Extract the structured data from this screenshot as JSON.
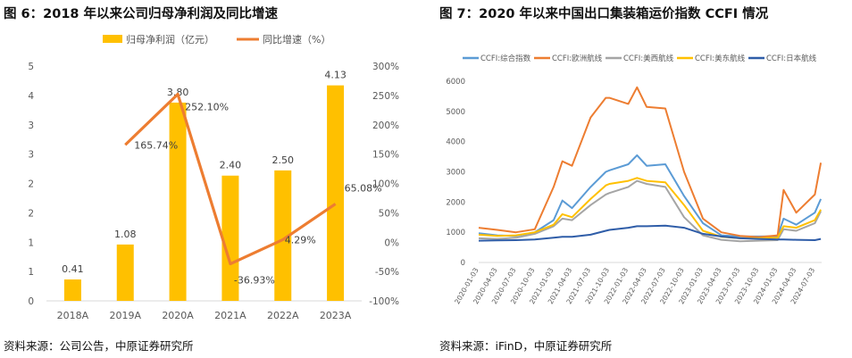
{
  "left": {
    "title": "图 6：2018 年以来公司归母净利润及同比增速",
    "source": "资料来源：公司公告，中原证券研究所",
    "accent": "#8b1a1a"
  },
  "right": {
    "title": "图 7：2020 年以来中国出口集装箱运价指数 CCFI 情况",
    "source": "资料来源：iFinD，中原证券研究所",
    "accent": "#8b1a1a"
  },
  "chart_data": [
    {
      "type": "bar",
      "categories": [
        "2018A",
        "2019A",
        "2020A",
        "2021A",
        "2022A",
        "2023A"
      ],
      "series": [
        {
          "name": "归母净利润（亿元）",
          "type": "bar",
          "axis": "left",
          "color": "#FFC000",
          "values": [
            0.41,
            1.08,
            3.8,
            2.4,
            2.5,
            4.13
          ],
          "labels": [
            "0.41",
            "1.08",
            "3.80",
            "2.40",
            "2.50",
            "4.13"
          ]
        },
        {
          "name": "同比增速（%）",
          "type": "line",
          "axis": "right",
          "color": "#ED7D31",
          "values": [
            null,
            165.74,
            252.1,
            -36.93,
            4.29,
            65.08
          ],
          "labels": [
            null,
            "165.74%",
            "252.10%",
            "-36.93%",
            "4.29%",
            "65.08%"
          ]
        }
      ],
      "y_left": {
        "ticks": [
          "5",
          "4",
          "3",
          "3",
          "2",
          "2",
          "1",
          "1",
          "0"
        ]
      },
      "y_right": {
        "ticks": [
          "300%",
          "250%",
          "200%",
          "150%",
          "100%",
          "50%",
          "0%",
          "-50%",
          "-100%"
        ],
        "ylim": [
          -100,
          300
        ]
      },
      "legend": "top",
      "grid": false
    },
    {
      "type": "line",
      "x_ticks": [
        "2020-01-03",
        "2020-04-03",
        "2020-07-03",
        "2020-10-03",
        "2021-01-03",
        "2021-04-03",
        "2021-07-03",
        "2021-10-03",
        "2022-01-03",
        "2022-04-03",
        "2022-07-03",
        "2022-10-03",
        "2023-01-03",
        "2023-04-03",
        "2023-07-03",
        "2023-10-03",
        "2024-01-03",
        "2024-04-03",
        "2024-07-03"
      ],
      "y_ticks": [
        "0",
        "1000",
        "2000",
        "3000",
        "4000",
        "5000",
        "6000"
      ],
      "ylim": [
        0,
        6000
      ],
      "legend": "top",
      "grid": false,
      "series": [
        {
          "name": "CCFI:综合指数",
          "color": "#5B9BD5",
          "x": [
            "2020-01-03",
            "2020-04-03",
            "2020-07-03",
            "2020-10-03",
            "2021-01-03",
            "2021-02-15",
            "2021-04-03",
            "2021-07-03",
            "2021-09-15",
            "2021-10-03",
            "2022-01-03",
            "2022-02-15",
            "2022-04-03",
            "2022-07-03",
            "2022-10-03",
            "2023-01-03",
            "2023-04-03",
            "2023-07-03",
            "2023-10-03",
            "2024-01-03",
            "2024-02-01",
            "2024-04-03",
            "2024-07-03",
            "2024-08-01"
          ],
          "values": [
            970,
            900,
            880,
            1000,
            1400,
            2050,
            1800,
            2500,
            3000,
            3050,
            3250,
            3550,
            3200,
            3250,
            2200,
            1300,
            900,
            860,
            860,
            870,
            1450,
            1250,
            1650,
            2100
          ]
        },
        {
          "name": "CCFI:欧洲航线",
          "color": "#ED7D31",
          "x": [
            "2020-01-03",
            "2020-04-03",
            "2020-07-03",
            "2020-10-03",
            "2021-01-03",
            "2021-02-15",
            "2021-04-03",
            "2021-07-03",
            "2021-09-15",
            "2021-10-03",
            "2022-01-03",
            "2022-02-15",
            "2022-04-03",
            "2022-07-03",
            "2022-10-03",
            "2023-01-03",
            "2023-04-03",
            "2023-07-03",
            "2023-10-03",
            "2024-01-03",
            "2024-02-01",
            "2024-04-03",
            "2024-07-03",
            "2024-08-01"
          ],
          "values": [
            1150,
            1080,
            1000,
            1100,
            2500,
            3350,
            3200,
            4800,
            5450,
            5450,
            5250,
            5800,
            5150,
            5100,
            3000,
            1450,
            1000,
            880,
            840,
            900,
            2400,
            1650,
            2250,
            3300
          ]
        },
        {
          "name": "CCFI:美西航线",
          "color": "#A5A5A5",
          "x": [
            "2020-01-03",
            "2020-04-03",
            "2020-07-03",
            "2020-10-03",
            "2021-01-03",
            "2021-02-15",
            "2021-04-03",
            "2021-07-03",
            "2021-09-15",
            "2021-10-03",
            "2022-01-03",
            "2022-02-15",
            "2022-04-03",
            "2022-07-03",
            "2022-10-03",
            "2023-01-03",
            "2023-04-03",
            "2023-07-03",
            "2023-10-03",
            "2024-01-03",
            "2024-02-01",
            "2024-04-03",
            "2024-07-03",
            "2024-08-01"
          ],
          "values": [
            800,
            780,
            820,
            950,
            1200,
            1450,
            1400,
            1900,
            2250,
            2300,
            2500,
            2700,
            2600,
            2500,
            1500,
            900,
            750,
            700,
            720,
            740,
            1100,
            1050,
            1300,
            1700
          ]
        },
        {
          "name": "CCFI:美东航线",
          "color": "#FFC000",
          "x": [
            "2020-01-03",
            "2020-04-03",
            "2020-07-03",
            "2020-10-03",
            "2021-01-03",
            "2021-02-15",
            "2021-04-03",
            "2021-07-03",
            "2021-09-15",
            "2021-10-03",
            "2022-01-03",
            "2022-02-15",
            "2022-04-03",
            "2022-07-03",
            "2022-10-03",
            "2023-01-03",
            "2023-04-03",
            "2023-07-03",
            "2023-10-03",
            "2024-01-03",
            "2024-02-01",
            "2024-04-03",
            "2024-07-03",
            "2024-08-01"
          ],
          "values": [
            920,
            880,
            900,
            1000,
            1250,
            1600,
            1500,
            2100,
            2550,
            2600,
            2700,
            2800,
            2700,
            2650,
            1900,
            1050,
            850,
            800,
            800,
            820,
            1200,
            1150,
            1400,
            1750
          ]
        },
        {
          "name": "CCFI:日本航线",
          "color": "#2F5DA8",
          "x": [
            "2020-01-03",
            "2020-04-03",
            "2020-07-03",
            "2020-10-03",
            "2021-01-03",
            "2021-02-15",
            "2021-04-03",
            "2021-07-03",
            "2021-09-15",
            "2021-10-03",
            "2022-01-03",
            "2022-02-15",
            "2022-04-03",
            "2022-07-03",
            "2022-10-03",
            "2023-01-03",
            "2023-04-03",
            "2023-07-03",
            "2023-10-03",
            "2024-01-03",
            "2024-02-01",
            "2024-04-03",
            "2024-07-03",
            "2024-08-01"
          ],
          "values": [
            720,
            730,
            740,
            760,
            820,
            850,
            850,
            920,
            1050,
            1080,
            1150,
            1200,
            1200,
            1220,
            1150,
            950,
            860,
            800,
            780,
            760,
            760,
            750,
            740,
            780
          ]
        }
      ]
    }
  ]
}
